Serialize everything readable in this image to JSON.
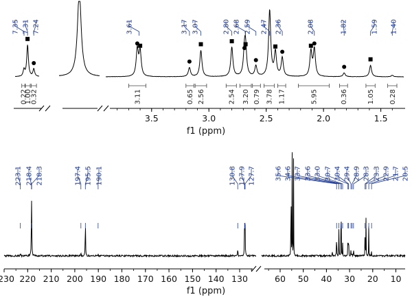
{
  "chart_data": [
    {
      "type": "line",
      "nucleus": "1H",
      "xlabel": "f1 (ppm)",
      "x_segments": [
        [
          7.45,
          7.18
        ],
        [
          7.05,
          6.85
        ],
        [
          3.9,
          1.3
        ]
      ],
      "xticks": [
        3.5,
        3.0,
        2.5,
        2.0,
        1.5
      ],
      "peak_labels": [
        "7.35",
        "7.31",
        "7.24",
        "3.61",
        "3.17",
        "3.07",
        "2.80",
        "2.68",
        "2.59",
        "2.47",
        "2.36",
        "2.08",
        "1.82",
        "1.59",
        "1.40"
      ],
      "peaks": [
        {
          "ppm": 7.35,
          "height": 0.09
        },
        {
          "ppm": 7.31,
          "height": 0.42,
          "marker": "square"
        },
        {
          "ppm": 7.24,
          "height": 0.1,
          "marker": "circle"
        },
        {
          "ppm": 6.95,
          "height": 1.15
        },
        {
          "ppm": 3.625,
          "height": 0.36,
          "marker": "circle"
        },
        {
          "ppm": 3.6,
          "height": 0.33,
          "marker": "square"
        },
        {
          "ppm": 3.17,
          "height": 0.12,
          "marker": "circle"
        },
        {
          "ppm": 3.07,
          "height": 0.35,
          "marker": "square"
        },
        {
          "ppm": 2.8,
          "height": 0.39,
          "marker": "square"
        },
        {
          "ppm": 2.68,
          "height": 0.35,
          "marker": "square"
        },
        {
          "ppm": 2.69,
          "height": 0.3,
          "marker": "circle"
        },
        {
          "ppm": 2.59,
          "height": 0.14,
          "marker": "circle"
        },
        {
          "ppm": 2.47,
          "height": 0.88
        },
        {
          "ppm": 2.42,
          "height": 0.32,
          "marker": "square"
        },
        {
          "ppm": 2.36,
          "height": 0.25,
          "marker": "circle"
        },
        {
          "ppm": 2.11,
          "height": 0.33,
          "marker": "square"
        },
        {
          "ppm": 2.08,
          "height": 0.36,
          "marker": "circle"
        },
        {
          "ppm": 1.82,
          "height": 0.05,
          "marker": "circle"
        },
        {
          "ppm": 1.59,
          "height": 0.15,
          "marker": "square"
        },
        {
          "ppm": 1.4,
          "height": 0.02
        }
      ],
      "integrals": [
        {
          "from": 7.375,
          "to": 7.34,
          "value": "0.22"
        },
        {
          "from": 7.335,
          "to": 7.28,
          "value": "1.00"
        },
        {
          "from": 7.27,
          "to": 7.21,
          "value": "0.32"
        },
        {
          "from": 3.7,
          "to": 3.55,
          "value": "3.11"
        },
        {
          "from": 3.2,
          "to": 3.13,
          "value": "0.65"
        },
        {
          "from": 3.12,
          "to": 3.02,
          "value": "2.56"
        },
        {
          "from": 2.85,
          "to": 2.76,
          "value": "2.54"
        },
        {
          "from": 2.73,
          "to": 2.63,
          "value": "3.20"
        },
        {
          "from": 2.62,
          "to": 2.55,
          "value": "0.79"
        },
        {
          "from": 2.52,
          "to": 2.43,
          "value": "3.78"
        },
        {
          "from": 2.4,
          "to": 2.33,
          "value": "1.17"
        },
        {
          "from": 2.22,
          "to": 1.95,
          "value": "5.95"
        },
        {
          "from": 1.86,
          "to": 1.79,
          "value": "0.36"
        },
        {
          "from": 1.63,
          "to": 1.55,
          "value": "1.05"
        },
        {
          "from": 1.44,
          "to": 1.36,
          "value": "0.28"
        }
      ]
    },
    {
      "type": "line",
      "nucleus": "13C",
      "xlabel": "f1 (ppm)",
      "x_segments": [
        [
          230,
          123
        ],
        [
          68,
          6
        ]
      ],
      "xticks": [
        230,
        220,
        210,
        200,
        190,
        180,
        170,
        160,
        150,
        140,
        130,
        60,
        50,
        40,
        30,
        20,
        10
      ],
      "peak_labels": [
        "223.1",
        "218.4",
        "218.3",
        "197.4",
        "195.5",
        "190.1",
        "130.8",
        "127.9",
        "127.7",
        "35.6",
        "34.6",
        "33.7",
        "33.6",
        "33.0",
        "30.7",
        "30.4",
        "29.4",
        "28.9",
        "28.3",
        "23.3",
        "22.9",
        "21.7",
        "20.5"
      ],
      "peaks": [
        {
          "ppm": 223.1,
          "height": 0.05
        },
        {
          "ppm": 218.4,
          "height": 0.62
        },
        {
          "ppm": 218.3,
          "height": 0.55
        },
        {
          "ppm": 197.4,
          "height": 0.06
        },
        {
          "ppm": 195.5,
          "height": 0.6
        },
        {
          "ppm": 190.1,
          "height": 0.03
        },
        {
          "ppm": 130.8,
          "height": 0.13
        },
        {
          "ppm": 127.9,
          "height": 0.55
        },
        {
          "ppm": 127.7,
          "height": 0.5
        },
        {
          "ppm": 55.3,
          "height": 1.65
        },
        {
          "ppm": 54.8,
          "height": 1.6
        },
        {
          "ppm": 54.2,
          "height": 1.5
        },
        {
          "ppm": 37.5,
          "height": 0.12
        },
        {
          "ppm": 35.6,
          "height": 0.58
        },
        {
          "ppm": 34.6,
          "height": 0.52
        },
        {
          "ppm": 33.7,
          "height": 0.6
        },
        {
          "ppm": 33.6,
          "height": 0.45
        },
        {
          "ppm": 33.0,
          "height": 0.2
        },
        {
          "ppm": 30.7,
          "height": 0.55
        },
        {
          "ppm": 30.4,
          "height": 0.48
        },
        {
          "ppm": 29.4,
          "height": 0.12
        },
        {
          "ppm": 28.9,
          "height": 0.08
        },
        {
          "ppm": 28.3,
          "height": 0.18
        },
        {
          "ppm": 23.3,
          "height": 0.62
        },
        {
          "ppm": 22.9,
          "height": 0.58
        },
        {
          "ppm": 21.7,
          "height": 0.55
        },
        {
          "ppm": 20.5,
          "height": 0.1
        }
      ]
    }
  ]
}
